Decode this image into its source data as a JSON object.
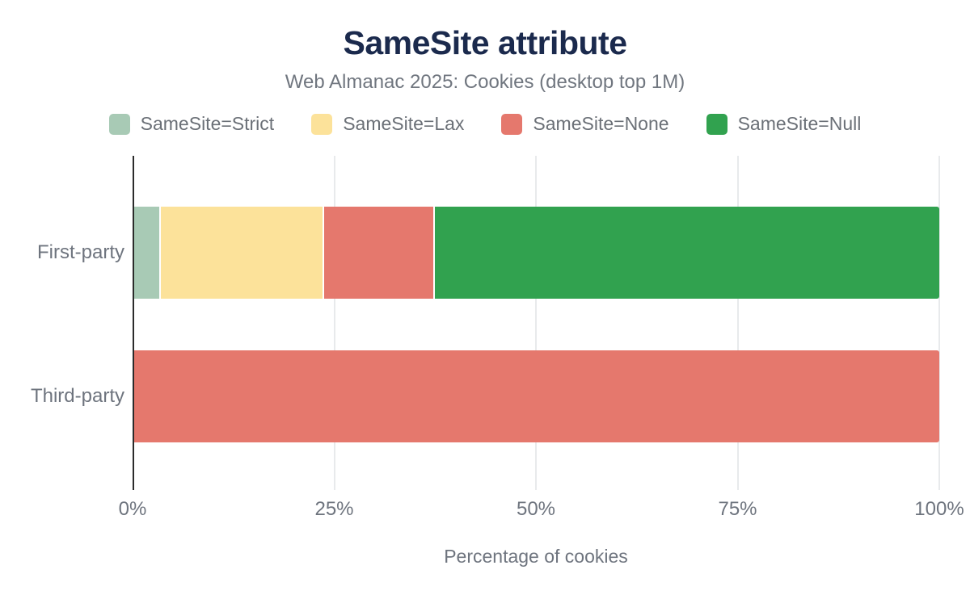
{
  "chart_data": {
    "type": "bar",
    "orientation": "horizontal",
    "stacked": true,
    "title": "SameSite attribute",
    "subtitle": "Web Almanac 2025: Cookies (desktop top 1M)",
    "xlabel": "Percentage of cookies",
    "categories": [
      "First-party",
      "Third-party"
    ],
    "series": [
      {
        "name": "SameSite=Strict",
        "color": "#a8cab5",
        "values": [
          3.3,
          0
        ]
      },
      {
        "name": "SameSite=Lax",
        "color": "#fce29a",
        "values": [
          20.3,
          0
        ]
      },
      {
        "name": "SameSite=None",
        "color": "#e5786d",
        "values": [
          13.8,
          100
        ]
      },
      {
        "name": "SameSite=Null",
        "color": "#31a24f",
        "values": [
          62.6,
          0
        ]
      }
    ],
    "x_tick_labels": [
      "0%",
      "25%",
      "50%",
      "75%",
      "100%"
    ],
    "x_tick_values": [
      0,
      25,
      50,
      75,
      100
    ],
    "xlim": [
      0,
      100
    ],
    "grid": true,
    "legend_position": "top"
  },
  "colors": {
    "title_text": "#1b2a4d",
    "body_text": "#6e747e",
    "gridline": "#e8eaec",
    "axis_line": "#2b2b2b",
    "background": "#ffffff"
  }
}
